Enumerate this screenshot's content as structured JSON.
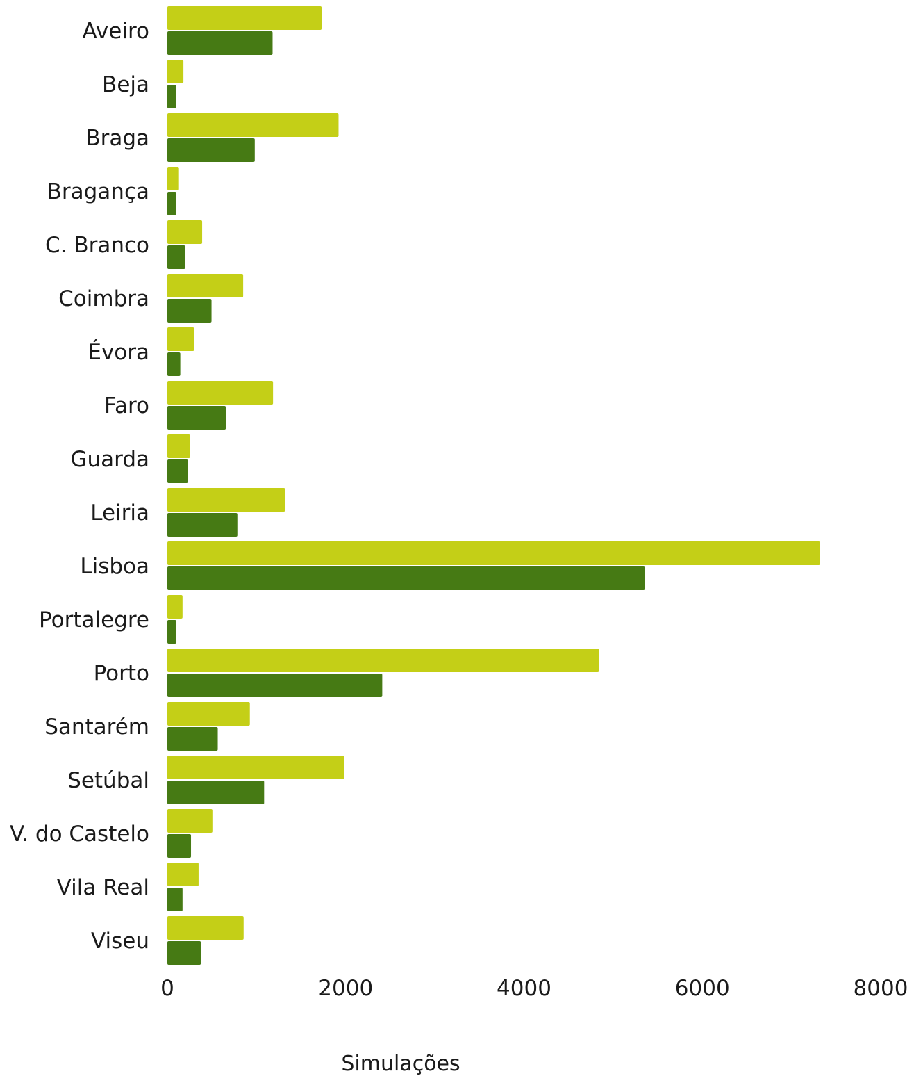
{
  "chart_data": {
    "type": "bar",
    "orientation": "horizontal",
    "categories": [
      "Aveiro",
      "Beja",
      "Braga",
      "Bragança",
      "C. Branco",
      "Coimbra",
      "Évora",
      "Faro",
      "Guarda",
      "Leiria",
      "Lisboa",
      "Portalegre",
      "Porto",
      "Santarém",
      "Setúbal",
      "V. do Castelo",
      "Vila Real",
      "Viseu"
    ],
    "series": [
      {
        "color": "#c4cf17",
        "values": [
          1730,
          180,
          1920,
          130,
          390,
          850,
          300,
          1185,
          255,
          1320,
          7320,
          170,
          4840,
          925,
          1985,
          505,
          350,
          855
        ]
      },
      {
        "color": "#467a14",
        "values": [
          1180,
          100,
          980,
          100,
          200,
          495,
          145,
          655,
          230,
          785,
          5355,
          100,
          2410,
          565,
          1085,
          265,
          170,
          375
        ]
      }
    ],
    "xticks": [
      "0",
      "2000",
      "4000",
      "6000",
      "8000"
    ],
    "xlim": [
      0,
      8000
    ],
    "xlabel": "Simulações",
    "grid": false,
    "legend": "none"
  }
}
